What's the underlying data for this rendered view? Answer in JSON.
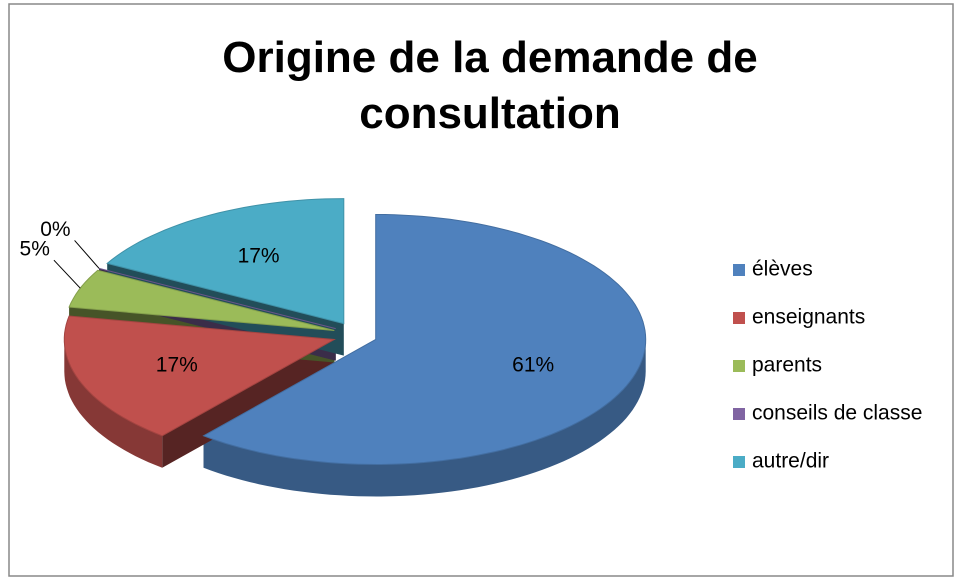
{
  "chart_data": {
    "type": "pie",
    "title": "Origine de la demande de consultation",
    "categories": [
      "élèves",
      "enseignants",
      "parents",
      "conseils de classe",
      "autre/dir"
    ],
    "values": [
      61,
      17,
      5,
      0,
      17
    ],
    "value_labels": [
      "61%",
      "17%",
      "5%",
      "0%",
      "17%"
    ],
    "colors": [
      "#4f81bd",
      "#c0504d",
      "#9bbb59",
      "#8064a2",
      "#4bacc6"
    ],
    "legend": "right"
  }
}
